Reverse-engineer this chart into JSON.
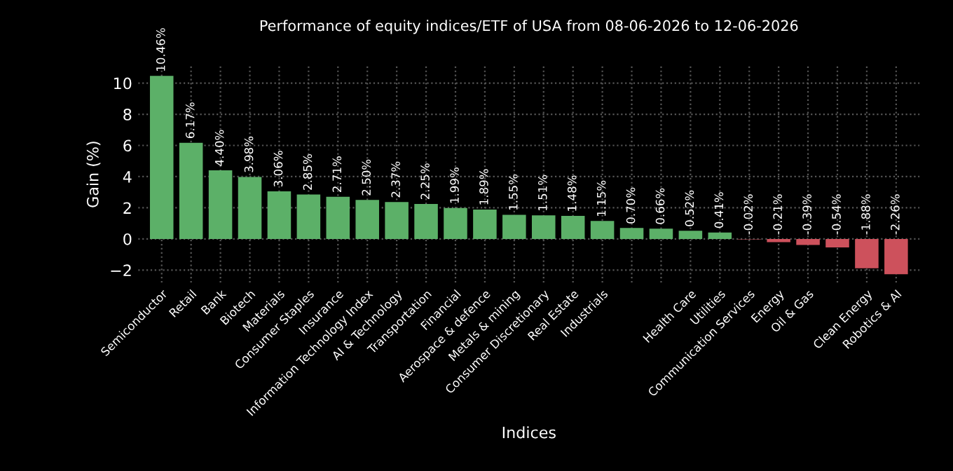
{
  "chart_data": {
    "type": "bar",
    "title": "Performance of equity indices/ETF of USA from 08-06-2026 to 12-06-2026",
    "xlabel": "Indices",
    "ylabel": "Gain (%)",
    "categories": [
      "Semiconductor",
      "Retail",
      "Bank",
      "Biotech",
      "Materials",
      "Consumer Staples",
      "Insurance",
      "Information Technology Index",
      "AI & Technology",
      "Transportation",
      "Financial",
      "Aerospace & defence",
      "Metals & mining",
      "Consumer Discretionary",
      "Real Estate",
      "Industrials",
      null,
      null,
      "Health Care",
      "Utilities",
      "Communication Services",
      "Energy",
      "Oil & Gas",
      null,
      "Clean Energy",
      "Robotics & AI"
    ],
    "values": [
      10.46,
      6.17,
      4.4,
      3.98,
      3.06,
      2.85,
      2.71,
      2.5,
      2.37,
      2.25,
      1.99,
      1.89,
      1.55,
      1.51,
      1.48,
      1.15,
      0.7,
      0.66,
      0.52,
      0.41,
      -0.02,
      -0.21,
      -0.39,
      -0.54,
      -1.88,
      -2.26
    ],
    "colors": [
      "#5cb068",
      "#5cb068",
      "#5cb068",
      "#5cb068",
      "#5cb068",
      "#5cb068",
      "#5cb068",
      "#5cb068",
      "#5cb068",
      "#5cb068",
      "#5cb068",
      "#5cb068",
      "#5cb068",
      "#5cb068",
      "#5cb068",
      "#5cb068",
      "#5cb068",
      "#5cb068",
      "#5cb068",
      "#5cb068",
      "#cd515c",
      "#cd515c",
      "#cd515c",
      "#cd515c",
      "#cd515c",
      "#cd515c"
    ],
    "value_labels": [
      "10.46%",
      "6.17%",
      "4.40%",
      "3.98%",
      "3.06%",
      "2.85%",
      "2.71%",
      "2.50%",
      "2.37%",
      "2.25%",
      "1.99%",
      "1.89%",
      "1.55%",
      "1.51%",
      "1.48%",
      "1.15%",
      "0.70%",
      "0.66%",
      "0.52%",
      "0.41%",
      "-0.02%",
      "-0.21%",
      "-0.39%",
      "-0.54%",
      "-1.88%",
      "-2.26%"
    ],
    "ylim": [
      -2.8,
      11.1
    ],
    "yticks": [
      {
        "value": -2,
        "label": "−2"
      },
      0,
      2,
      4,
      6,
      8,
      10
    ],
    "grid": true
  }
}
